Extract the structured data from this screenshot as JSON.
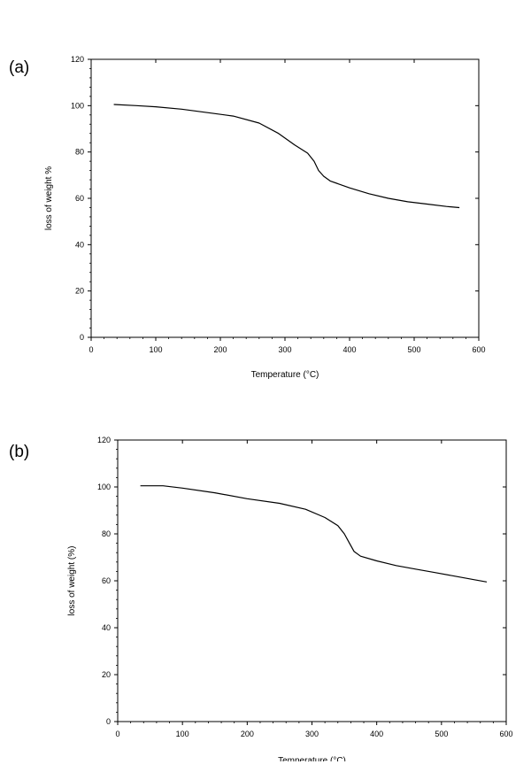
{
  "panels": [
    {
      "label": "(a)"
    },
    {
      "label": "(b)"
    }
  ],
  "chart_data": [
    {
      "type": "line",
      "panel": "(a)",
      "title": "",
      "xlabel": "Temperature (°C)",
      "ylabel": "loss of weight %",
      "xlim": [
        0,
        600
      ],
      "ylim": [
        0,
        120
      ],
      "xticks": [
        0,
        100,
        200,
        300,
        400,
        500,
        600
      ],
      "yticks": [
        0,
        20,
        40,
        60,
        80,
        100,
        120
      ],
      "grid": false,
      "series": [
        {
          "x": [
            35,
            70,
            100,
            140,
            180,
            220,
            260,
            290,
            315,
            335,
            345,
            352,
            360,
            370,
            400,
            430,
            460,
            490,
            520,
            550,
            570
          ],
          "y": [
            100.5,
            100,
            99.5,
            98.5,
            97,
            95.5,
            92.5,
            88,
            83,
            79.5,
            76,
            72,
            69.5,
            67.5,
            64.5,
            62,
            60,
            58.5,
            57.5,
            56.5,
            56
          ]
        }
      ]
    },
    {
      "type": "line",
      "panel": "(b)",
      "title": "",
      "xlabel": "Temperature (°C)",
      "ylabel": "loss of weight (%)",
      "xlim": [
        0,
        600
      ],
      "ylim": [
        0,
        120
      ],
      "xticks": [
        0,
        100,
        200,
        300,
        400,
        500,
        600
      ],
      "yticks": [
        0,
        20,
        40,
        60,
        80,
        100,
        120
      ],
      "grid": false,
      "series": [
        {
          "x": [
            35,
            70,
            100,
            150,
            200,
            250,
            290,
            320,
            340,
            350,
            358,
            365,
            375,
            400,
            430,
            460,
            490,
            520,
            550,
            570
          ],
          "y": [
            100.5,
            100.5,
            99.5,
            97.5,
            95,
            93,
            90.5,
            87,
            83.5,
            80,
            76,
            72.5,
            70.5,
            68.5,
            66.5,
            65,
            63.5,
            62,
            60.5,
            59.5
          ]
        }
      ]
    }
  ]
}
